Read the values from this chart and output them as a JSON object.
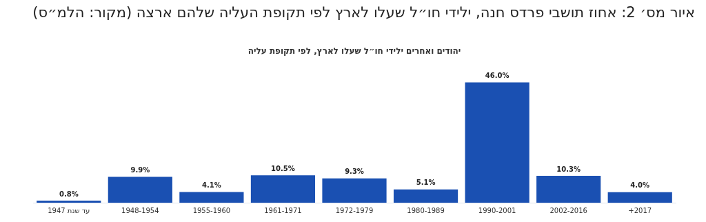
{
  "chart_data": {
    "type": "bar",
    "title": "איור מס׳ 2: אחוז תושבי פרדס חנה, ילידי חו״ל שעלו לארץ לפי תקופת העליה שלהם ארצה (מקור: הלמ״ס)",
    "subtitle": "יהודים ואחרים ילידי חו״ל שעלו לארץ, לפי תקופת עליה",
    "categories": [
      "עד שנת 1947",
      "1948-1954",
      "1955-1960",
      "1961-1971",
      "1972-1979",
      "1980-1989",
      "1990-2001",
      "2002-2016",
      "+2017"
    ],
    "values": [
      0.8,
      9.9,
      4.1,
      10.5,
      9.3,
      5.1,
      46.0,
      10.3,
      4.0
    ],
    "value_labels": [
      "0.8%",
      "9.9%",
      "4.1%",
      "10.5%",
      "9.3%",
      "5.1%",
      "46.0%",
      "10.3%",
      "4.0%"
    ],
    "color": "#1a50b2",
    "grid": false,
    "legend": false,
    "tick_labels": "x"
  }
}
